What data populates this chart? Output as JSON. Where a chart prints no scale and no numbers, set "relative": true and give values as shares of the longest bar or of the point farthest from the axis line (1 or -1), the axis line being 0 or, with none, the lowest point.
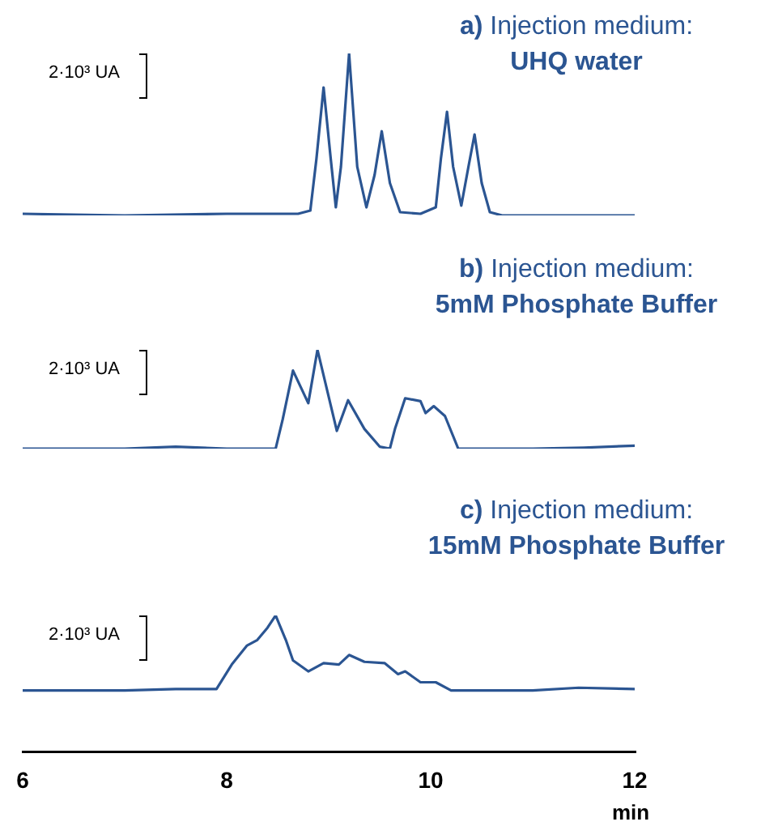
{
  "chart_data": [
    {
      "type": "line",
      "title": "a) Injection medium:",
      "subtitle": "UHQ water",
      "annotations": [
        "2·10³ UA"
      ],
      "relative": true,
      "xlim": [
        6,
        12
      ],
      "tick_labels": false,
      "grid": false,
      "legend": false,
      "marker": "none",
      "line_style": "solid",
      "series": [
        {
          "color": "#2b5592",
          "x": [
            6,
            7,
            8,
            8.7,
            8.82,
            8.88,
            8.95,
            9.02,
            9.07,
            9.12,
            9.2,
            9.28,
            9.37,
            9.45,
            9.52,
            9.6,
            9.7,
            9.9,
            10.05,
            10.1,
            10.16,
            10.22,
            10.3,
            10.37,
            10.43,
            10.5,
            10.58,
            10.7,
            11,
            12
          ],
          "values": [
            0.01,
            0,
            0.01,
            0.01,
            0.03,
            0.35,
            0.79,
            0.35,
            0.05,
            0.3,
            1,
            0.3,
            0.05,
            0.25,
            0.52,
            0.2,
            0.02,
            0.01,
            0.05,
            0.35,
            0.64,
            0.3,
            0.06,
            0.3,
            0.5,
            0.2,
            0.02,
            0,
            0,
            0
          ]
        }
      ]
    },
    {
      "type": "line",
      "title": "b) Injection medium:",
      "subtitle": "5mM Phosphate Buffer",
      "annotations": [
        "2·10³ UA"
      ],
      "relative": true,
      "xlim": [
        6,
        12
      ],
      "tick_labels": false,
      "grid": false,
      "legend": false,
      "marker": "none",
      "line_style": "solid",
      "series": [
        {
          "color": "#2b5592",
          "x": [
            6,
            7,
            7.5,
            8,
            8.48,
            8.55,
            8.65,
            8.8,
            8.89,
            9.08,
            9.19,
            9.35,
            9.5,
            9.6,
            9.65,
            9.75,
            9.9,
            9.95,
            10.03,
            10.14,
            10.27,
            10.5,
            11,
            11.5,
            12
          ],
          "values": [
            0,
            0,
            0.02,
            0,
            0,
            0.3,
            0.79,
            0.46,
            1,
            0.18,
            0.49,
            0.2,
            0.02,
            0,
            0.2,
            0.51,
            0.48,
            0.36,
            0.43,
            0.33,
            0,
            0,
            0,
            0.01,
            0.03
          ]
        }
      ]
    },
    {
      "type": "line",
      "title": "c) Injection medium:",
      "subtitle": "15mM Phosphate Buffer",
      "xlabel": "min",
      "annotations": [
        "2·10³ UA"
      ],
      "relative": true,
      "xlim": [
        6,
        12
      ],
      "xticks": [
        6,
        8,
        10,
        12
      ],
      "tick_labels": "x",
      "grid": false,
      "legend": false,
      "marker": "none",
      "line_style": "solid",
      "series": [
        {
          "color": "#2b5592",
          "x": [
            6,
            7,
            7.5,
            7.9,
            8.05,
            8.2,
            8.3,
            8.4,
            8.48,
            8.58,
            8.65,
            8.8,
            8.95,
            9.1,
            9.2,
            9.35,
            9.55,
            9.68,
            9.75,
            9.9,
            10.05,
            10.2,
            11,
            11.45,
            12
          ],
          "values": [
            0.45,
            0.45,
            0.46,
            0.46,
            0.64,
            0.78,
            0.82,
            0.91,
            1,
            0.82,
            0.67,
            0.59,
            0.65,
            0.64,
            0.71,
            0.66,
            0.65,
            0.57,
            0.59,
            0.51,
            0.51,
            0.45,
            0.45,
            0.47,
            0.46
          ]
        }
      ]
    }
  ]
}
